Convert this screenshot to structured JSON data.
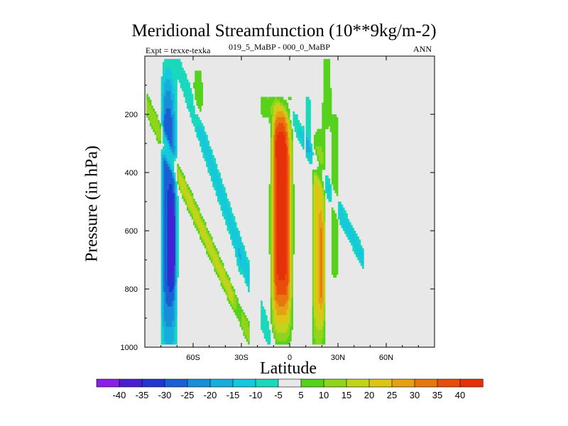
{
  "chart_data": {
    "type": "heatmap",
    "title": "Meridional Streamfunction (10**9kg/m-2)",
    "left_subtitle": "Expt = texxe-texka",
    "center_subtitle": "019_5_MaBP - 000_0_MaBP",
    "right_subtitle": "ANN",
    "xlabel": "Latitude",
    "ylabel": "Pressure (in hPa)",
    "xlim": [
      -90,
      90
    ],
    "ylim": [
      1000,
      0
    ],
    "x_ticks": [
      {
        "value": -60,
        "label": "60S"
      },
      {
        "value": -30,
        "label": "30S"
      },
      {
        "value": 0,
        "label": "0"
      },
      {
        "value": 30,
        "label": "30N"
      },
      {
        "value": 60,
        "label": "60N"
      }
    ],
    "y_ticks": [
      {
        "value": 200,
        "label": "200"
      },
      {
        "value": 400,
        "label": "400"
      },
      {
        "value": 600,
        "label": "600"
      },
      {
        "value": 800,
        "label": "800"
      },
      {
        "value": 1000,
        "label": "1000"
      }
    ],
    "colorbar": {
      "labels": [
        "-40",
        "-35",
        "-30",
        "-25",
        "-20",
        "-15",
        "-10",
        "-5",
        "5",
        "10",
        "15",
        "20",
        "25",
        "30",
        "35",
        "40"
      ],
      "colors": [
        "#8a20e6",
        "#4a1ed2",
        "#2136d0",
        "#1a60d4",
        "#168ed8",
        "#17aedc",
        "#16c8dc",
        "#1ad8bb",
        "#e8e8e8",
        "#56d11d",
        "#8fd51c",
        "#c0d41a",
        "#dcc514",
        "#e6a014",
        "#e8760f",
        "#e84e0b",
        "#e6300a"
      ]
    },
    "missing_color": "#e8e8e8",
    "features": [
      {
        "name": "sh-polar-negative-cell",
        "lat_range": [
          -86,
          -64
        ],
        "p_range": [
          40,
          970
        ],
        "min_value": -37
      },
      {
        "name": "sh-midlat-positive-band",
        "lat_range": [
          -61,
          -47
        ],
        "p_range": [
          40,
          960
        ],
        "max_value": 22
      },
      {
        "name": "sh-negative-band",
        "lat_range": [
          -42,
          -28
        ],
        "p_range": [
          40,
          965
        ],
        "min_value": -17
      },
      {
        "name": "equatorial-positive-cell",
        "lat_range": [
          -15,
          6
        ],
        "p_range": [
          170,
          980
        ],
        "max_value": 42
      },
      {
        "name": "nh-subtropical-positive-band",
        "lat_range": [
          13,
          28
        ],
        "p_range": [
          20,
          975
        ],
        "max_value": 33
      },
      {
        "name": "nh-negative-band",
        "lat_range": [
          31,
          43
        ],
        "p_range": [
          130,
          960
        ],
        "min_value": -12
      }
    ]
  }
}
